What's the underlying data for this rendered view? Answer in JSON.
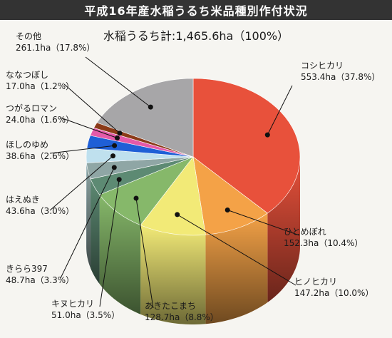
{
  "title": "平成16年産水稲うるち米品種別作付状況",
  "total_label": "水稲うるち計:1,465.6ha（100%）",
  "chart_data": {
    "type": "pie",
    "title": "平成16年産水稲うるち米品種別作付状況",
    "total": "水稲うるち計:1,465.6ha（100%）",
    "unit": "ha",
    "slices": [
      {
        "name": "コシヒカリ",
        "value": 553.4,
        "percent": 37.8,
        "value_label": "553.4ha（37.8%）",
        "color": "#e8513b"
      },
      {
        "name": "ひとめぼれ",
        "value": 152.3,
        "percent": 10.4,
        "value_label": "152.3ha（10.4%）",
        "color": "#f4a247"
      },
      {
        "name": "ヒノヒカリ",
        "value": 147.2,
        "percent": 10.0,
        "value_label": "147.2ha（10.0%）",
        "color": "#f2ea77"
      },
      {
        "name": "あきたこまち",
        "value": 128.7,
        "percent": 8.8,
        "value_label": "128.7ha（8.8%）",
        "color": "#86b86a"
      },
      {
        "name": "キヌヒカリ",
        "value": 51.0,
        "percent": 3.5,
        "value_label": "51.0ha（3.5%）",
        "color": "#5d8a73"
      },
      {
        "name": "きらら397",
        "value": 48.7,
        "percent": 3.3,
        "value_label": "48.7ha（3.3%）",
        "color": "#8fa6a5"
      },
      {
        "name": "はえぬき",
        "value": 43.6,
        "percent": 3.0,
        "value_label": "43.6ha（3.0%）",
        "color": "#bfe0ee"
      },
      {
        "name": "ほしのゆめ",
        "value": 38.6,
        "percent": 2.6,
        "value_label": "38.6ha（2.6%）",
        "color": "#1f5fd6"
      },
      {
        "name": "つがるロマン",
        "value": 24.0,
        "percent": 1.6,
        "value_label": "24.0ha（1.6%）",
        "color": "#e45aa9"
      },
      {
        "name": "ななつぼし",
        "value": 17.0,
        "percent": 1.2,
        "value_label": "17.0ha（1.2%）",
        "color": "#8b3a18"
      },
      {
        "name": "その他",
        "value": 261.1,
        "percent": 17.8,
        "value_label": "261.1ha（17.8%）",
        "color": "#a7a6a8"
      }
    ]
  }
}
